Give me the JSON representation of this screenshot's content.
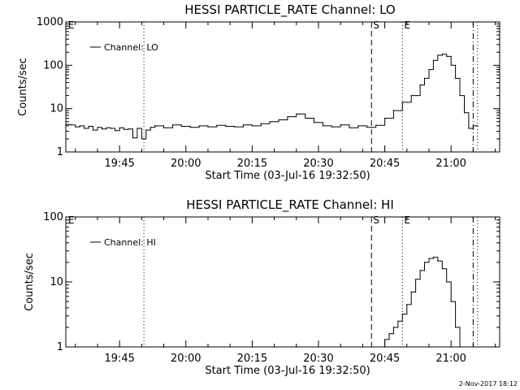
{
  "footer": {
    "date": "2-Nov-2017 18:12"
  },
  "chart_data": [
    {
      "type": "line",
      "title": "HESSI PARTICLE_RATE Channel: LO",
      "xlabel": "Start Time (03-Jul-16 19:32:50)",
      "ylabel": "Counts/sec",
      "yscale": "log",
      "xlim": [
        "19:32:50",
        "21:11:00"
      ],
      "ylim": [
        1,
        1000
      ],
      "xticks": [
        "19:45",
        "20:00",
        "20:15",
        "20:30",
        "20:45",
        "21:00"
      ],
      "yticks": [
        "1",
        "10",
        "100",
        "1000"
      ],
      "legend": {
        "position": "top-left"
      },
      "grid": false,
      "markers": [
        {
          "time": "19:33:00",
          "label": "E",
          "style": "none"
        },
        {
          "time": "19:50:30",
          "label": "",
          "style": "dotted"
        },
        {
          "time": "20:42:00",
          "label": "S",
          "style": "dashed"
        },
        {
          "time": "20:49:00",
          "label": "E",
          "style": "dotted"
        },
        {
          "time": "21:05:00",
          "label": "",
          "style": "dashdot"
        },
        {
          "time": "21:06:00",
          "label": "",
          "style": "dotted"
        }
      ],
      "series": [
        {
          "name": "Channel: LO",
          "x": [
            "19:33",
            "19:34",
            "19:35",
            "19:36",
            "19:37",
            "19:38",
            "19:39",
            "19:40",
            "19:41",
            "19:42",
            "19:43",
            "19:44",
            "19:45",
            "19:46",
            "19:47",
            "19:48",
            "19:49",
            "19:50",
            "19:51",
            "19:52",
            "19:53",
            "19:55",
            "19:57",
            "19:59",
            "20:01",
            "20:03",
            "20:05",
            "20:07",
            "20:09",
            "20:11",
            "20:13",
            "20:15",
            "20:17",
            "20:19",
            "20:21",
            "20:23",
            "20:25",
            "20:27",
            "20:29",
            "20:31",
            "20:33",
            "20:35",
            "20:37",
            "20:39",
            "20:41",
            "20:43",
            "20:45",
            "20:47",
            "20:49",
            "20:51",
            "20:53",
            "20:54",
            "20:55",
            "20:56",
            "20:57",
            "20:58",
            "20:59",
            "21:00",
            "21:01",
            "21:02",
            "21:03",
            "21:04",
            "21:05",
            "21:06"
          ],
          "y": [
            4.3,
            4.2,
            3.8,
            4.0,
            3.5,
            3.9,
            3.2,
            3.7,
            3.4,
            3.6,
            3.5,
            3.1,
            3.6,
            3.3,
            3.4,
            2.1,
            3.5,
            2.0,
            3.2,
            3.7,
            4.0,
            3.6,
            4.2,
            3.9,
            3.7,
            4.0,
            3.8,
            4.1,
            3.9,
            3.8,
            4.2,
            4.0,
            4.5,
            5.0,
            5.5,
            6.5,
            7.5,
            6.0,
            4.8,
            4.0,
            3.8,
            4.2,
            3.6,
            4.0,
            3.7,
            4.1,
            6.0,
            9.0,
            14,
            20,
            35,
            50,
            80,
            130,
            170,
            180,
            160,
            100,
            50,
            20,
            8.0,
            3.5,
            4.0,
            4.0
          ]
        }
      ]
    },
    {
      "type": "line",
      "title": "HESSI PARTICLE_RATE Channel: HI",
      "xlabel": "Start Time (03-Jul-16 19:32:50)",
      "ylabel": "Counts/sec",
      "yscale": "log",
      "xlim": [
        "19:32:50",
        "21:11:00"
      ],
      "ylim": [
        1,
        100
      ],
      "xticks": [
        "19:45",
        "20:00",
        "20:15",
        "20:30",
        "20:45",
        "21:00"
      ],
      "yticks": [
        "1",
        "10",
        "100"
      ],
      "legend": {
        "position": "top-left"
      },
      "grid": false,
      "markers": [
        {
          "time": "19:33:00",
          "label": "E",
          "style": "none"
        },
        {
          "time": "19:50:30",
          "label": "",
          "style": "dotted"
        },
        {
          "time": "20:42:00",
          "label": "S",
          "style": "dashed"
        },
        {
          "time": "20:49:00",
          "label": "E",
          "style": "dotted"
        },
        {
          "time": "21:05:00",
          "label": "",
          "style": "dashdot"
        },
        {
          "time": "21:06:00",
          "label": "",
          "style": "dotted"
        }
      ],
      "series": [
        {
          "name": "Channel: HI",
          "x": [
            "20:44",
            "20:45",
            "20:46",
            "20:47",
            "20:48",
            "20:49",
            "20:50",
            "20:51",
            "20:52",
            "20:53",
            "20:54",
            "20:55",
            "20:56",
            "20:57",
            "20:58",
            "20:59",
            "21:00",
            "21:01",
            "21:02"
          ],
          "y": [
            1.0,
            1.3,
            1.6,
            2.0,
            2.5,
            3.2,
            4.5,
            7,
            11,
            15,
            20,
            23,
            24,
            21,
            16,
            10,
            5,
            2,
            1.0
          ]
        }
      ]
    }
  ]
}
